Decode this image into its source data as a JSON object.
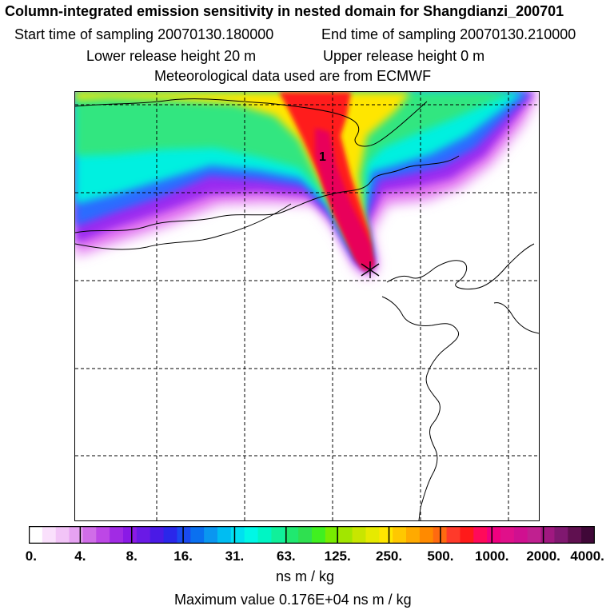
{
  "header": {
    "title": "Column-integrated emission sensitivity in nested domain for Shangdianzi_200701",
    "start_time": "Start time of sampling 20070130.180000",
    "end_time": "End time of sampling 20070130.210000",
    "lower_release": "Lower release height   20 m",
    "upper_release": "Upper release height    0 m",
    "met_data": "Meteorological data used are from ECMWF"
  },
  "map": {
    "peak_label": "1",
    "gridlines": "dashed",
    "colors": {
      "plume_core": "#e8005a",
      "plume_red": "#ff1a1a",
      "plume_yellow": "#ffe600",
      "green": "#33e680",
      "cyan": "#00f0e0",
      "blue": "#2a6cff",
      "violet": "#9b2cf0",
      "magenta": "#e070f0"
    }
  },
  "colorbar": {
    "ticks": [
      "0.",
      "4.",
      "8.",
      "16.",
      "31.",
      "63.",
      "125.",
      "250.",
      "500.",
      "1000.",
      "2000.",
      "4000."
    ],
    "unit": "ns m / kg",
    "colors": [
      "#ffffff",
      "#fae0fc",
      "#f2c4f7",
      "#e6a2f2",
      "#d06de8",
      "#bd47e6",
      "#a12be4",
      "#8a1ae6",
      "#6a1ae6",
      "#4a1ae6",
      "#2a27ea",
      "#1a4af0",
      "#0a70f0",
      "#0a96f0",
      "#00bdf2",
      "#00e0f0",
      "#00f7e6",
      "#00f5c4",
      "#10f09a",
      "#20e870",
      "#2fe050",
      "#40f020",
      "#78ec00",
      "#a2e600",
      "#c8e600",
      "#e6ea00",
      "#ffe600",
      "#ffc800",
      "#ffaa00",
      "#ff8a00",
      "#ff6a10",
      "#ff3a2a",
      "#ff1a1a",
      "#ff0a5a",
      "#f00080",
      "#e0108a",
      "#d01090",
      "#c02090",
      "#a01880",
      "#801870",
      "#601050",
      "#400838"
    ]
  },
  "footer": {
    "max_value": "Maximum value  0.176E+04 ns m / kg"
  }
}
